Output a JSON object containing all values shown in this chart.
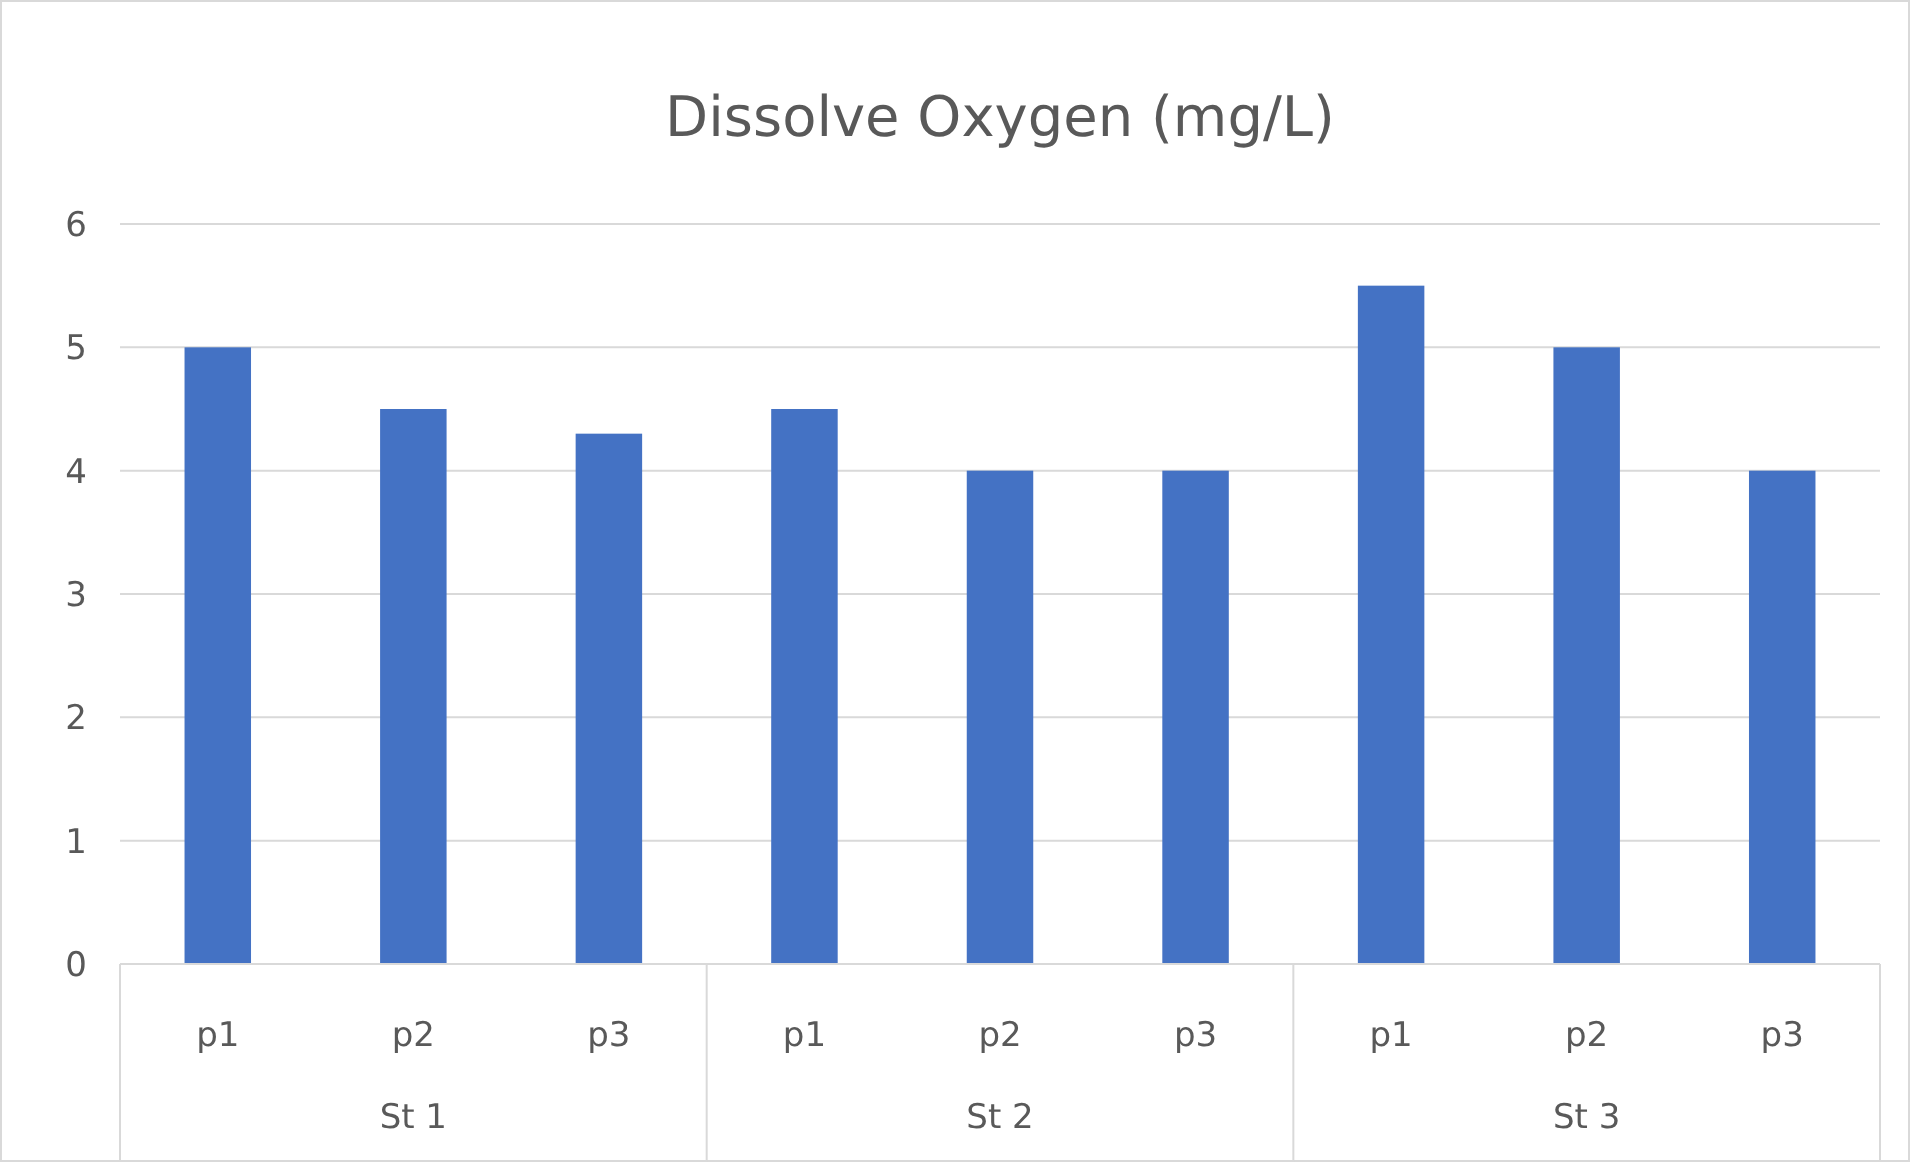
{
  "chart_data": {
    "type": "bar",
    "title": "Dissolve Oxygen (mg/L)",
    "categories": [
      "p1",
      "p2",
      "p3",
      "p1",
      "p2",
      "p3",
      "p1",
      "p2",
      "p3"
    ],
    "values": [
      5,
      4.5,
      4.3,
      4.5,
      4,
      4,
      5.5,
      5,
      4
    ],
    "color": "#4472c4",
    "ylim": [
      0,
      6
    ],
    "yticks": [
      0,
      1,
      2,
      3,
      4,
      5,
      6
    ],
    "grid": "y",
    "annotations": [
      "St 1",
      "St 2",
      "St 3"
    ]
  }
}
